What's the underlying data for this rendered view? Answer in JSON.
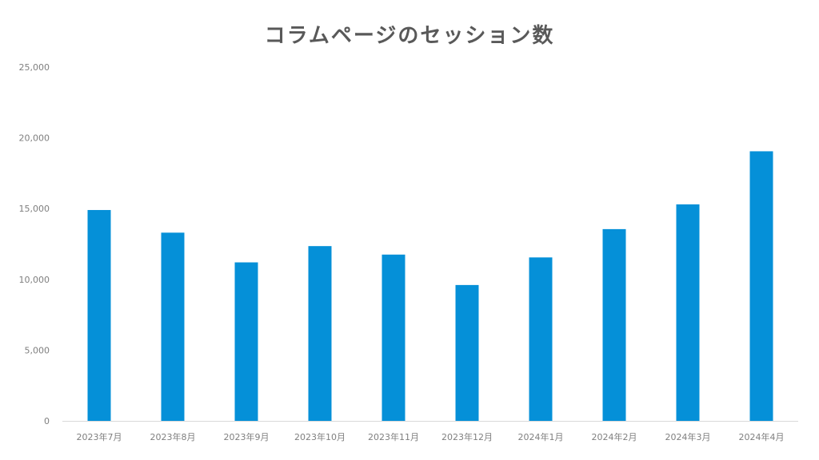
{
  "chart_data": {
    "type": "bar",
    "title": "コラムページのセッション数",
    "xlabel": "",
    "ylabel": "",
    "categories": [
      "2023年7月",
      "2023年8月",
      "2023年9月",
      "2023年10月",
      "2023年11月",
      "2023年12月",
      "2024年1月",
      "2024年2月",
      "2024年3月",
      "2024年4月"
    ],
    "values": [
      14900,
      13300,
      11200,
      12350,
      11750,
      9600,
      11550,
      13550,
      15300,
      19050
    ],
    "ylim": [
      0,
      25000
    ],
    "yticks": [
      0,
      5000,
      10000,
      15000,
      20000,
      25000
    ],
    "ytick_labels": [
      "0",
      "5,000",
      "10,000",
      "15,000",
      "20,000",
      "25,000"
    ],
    "grid": false,
    "legend": "none",
    "bar_color": "#0590d8",
    "axis_color": "#d9d9d9"
  }
}
